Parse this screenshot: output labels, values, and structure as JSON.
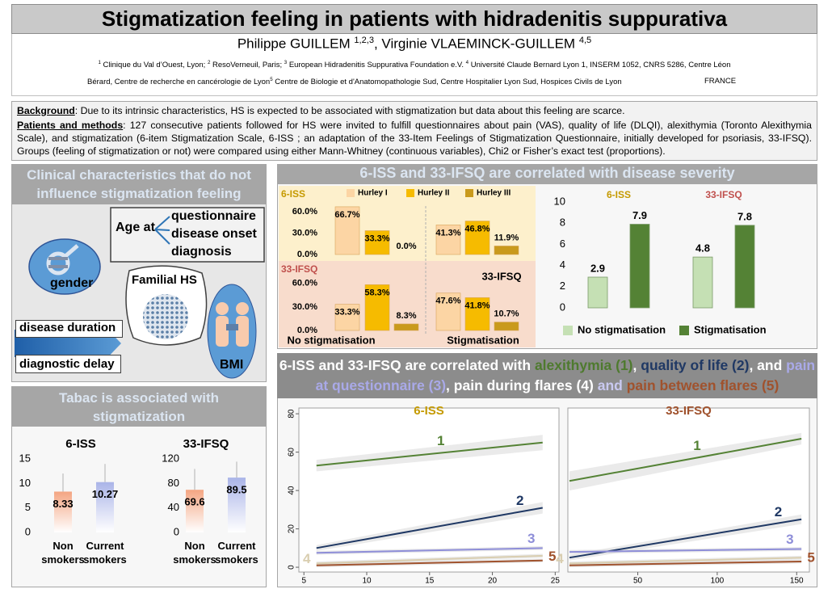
{
  "header": {
    "title": "Stigmatization feeling in patients with hidradenitis suppurativa",
    "authors": [
      {
        "text": "Philippe GUILLEM "
      },
      {
        "sup": "1,2,3"
      },
      {
        "text": ", Virginie VLAEMINCK-GUILLEM "
      },
      {
        "sup": "4,5"
      }
    ],
    "affiliations": [
      [
        {
          "sup": "1"
        },
        {
          "text": " Clinique du Val d’Ouest, Lyon; "
        },
        {
          "sup": "2"
        },
        {
          "text": " ResoVerneuil, Paris; "
        },
        {
          "sup": "3"
        },
        {
          "text": " European Hidradenitis Suppurativa Foundation e.V. "
        },
        {
          "sup": "4"
        },
        {
          "text": " Université Claude Bernard Lyon 1, INSERM 1052, CNRS 5286, Centre Léon"
        }
      ],
      [
        {
          "text": "Bérard, Centre de recherche en cancérologie de Lyon"
        },
        {
          "sup": "5"
        },
        {
          "text": " Centre de Biologie et d'Anatomopathologie Sud, Centre Hospitalier Lyon Sud, Hospices Civils de Lyon"
        }
      ]
    ],
    "country": "FRANCE"
  },
  "intro": [
    {
      "heading": "Background",
      "text": ": Due to its intrinsic characteristics, HS is expected to be associated with stigmatization but data about this feeling are scarce."
    },
    {
      "heading": "Patients and methods",
      "text": ": 127 consecutive patients followed for HS were invited to fulfill questionnaires about pain (VAS), quality of life (DLQI), alexithymia (Toronto Alexithymia Scale), and stigmatization (6-item Stigmatization Scale, 6-ISS ; an adaptation of the 33-Item Feelings of Stigmatization Questionnaire, initially developed for psoriasis, 33-IFSQ). Groups (feeling of stigmatization or not) were compared using either Mann-Whitney (continuous variables), Chi2 or Fisher’s exact test (proportions)."
    }
  ],
  "clinical": {
    "title": "Clinical characteristics that do not influence stigmatization feeling",
    "gender": "gender",
    "age_at": "Age at",
    "age_items": [
      "questionnaire",
      "disease onset",
      "diagnosis"
    ],
    "familial": "Familial HS",
    "duration": "disease duration",
    "delay": "diagnostic delay",
    "bmi": "BMI"
  },
  "panels": {
    "tabac": "Tabac is associated with stigmatization",
    "severity": "6-ISS and 33-IFSQ are correlated with disease severity",
    "correlates": [
      {
        "text": "6-ISS and 33-IFSQ are correlated with ",
        "color": "#ffffff"
      },
      {
        "text": "alexithymia (1)",
        "color": "#4e7a2e"
      },
      {
        "text": ", ",
        "color": "#ffffff"
      },
      {
        "text": "quality of life (2)",
        "color": "#1f3864"
      },
      {
        "text": ", and ",
        "color": "#ffffff"
      },
      {
        "text": "pain at questionnaire (3)",
        "color": "#a9a9e8"
      },
      {
        "text": ", ",
        "color": "#ffffff"
      },
      {
        "text": "pain during flares (4)",
        "color": "#ffffff"
      },
      {
        "text": " and ",
        "color": "#c9c9f0"
      },
      {
        "text": "pain between flares (5)",
        "color": "#a0522d"
      }
    ]
  },
  "chart_data": [
    {
      "type": "bar",
      "title": "6-ISS",
      "categories": [
        "Non smokers",
        "Current smokers"
      ],
      "values": [
        8.33,
        10.27
      ],
      "errors": [
        3.7,
        3.7
      ],
      "colors": [
        "#f4a582",
        "#aab4e8"
      ],
      "ylim": [
        0,
        15
      ],
      "yticks": [
        0,
        5,
        10,
        15
      ]
    },
    {
      "type": "bar",
      "title": "33-IFSQ",
      "categories": [
        "Non smokers",
        "Current smokers"
      ],
      "values": [
        69.6,
        89.5
      ],
      "errors": [
        34,
        26
      ],
      "colors": [
        "#f4a582",
        "#aab4e8"
      ],
      "ylim": [
        0,
        120
      ],
      "yticks": [
        0,
        40,
        80,
        120
      ]
    },
    {
      "type": "grouped_bar",
      "categories": [
        "No stigmatisation",
        "Stigmatisation"
      ],
      "series": [
        {
          "name": "Hurley I",
          "color": "#fcd5a4"
        },
        {
          "name": "Hurley II",
          "color": "#f6bb00"
        },
        {
          "name": "Hurley III",
          "color": "#c99a1c"
        }
      ],
      "rows": [
        {
          "name": "6-ISS",
          "color": "#c59a00",
          "values": [
            [
              66.7,
              33.3,
              0.0
            ],
            [
              41.3,
              46.8,
              11.9
            ]
          ],
          "value_labels": [
            [
              "66.7%",
              "33.3%",
              "0.0%"
            ],
            [
              "41.3%",
              "46.8%",
              "11.9%"
            ]
          ]
        },
        {
          "name": "33-IFSQ",
          "color": "#c0504d",
          "values": [
            [
              33.3,
              58.3,
              8.3
            ],
            [
              47.6,
              41.8,
              10.7
            ]
          ],
          "value_labels": [
            [
              "33.3%",
              "58.3%",
              "8.3%"
            ],
            [
              "47.6%",
              "41.8%",
              "10.7%"
            ]
          ]
        }
      ],
      "ylim": [
        0,
        70
      ],
      "yticks": [
        {
          "value": 0,
          "label": "0.0%"
        },
        {
          "value": 30,
          "label": "30.0%"
        },
        {
          "value": 60,
          "label": "60.0%"
        }
      ],
      "annotation": "33-IFSQ"
    },
    {
      "type": "bar",
      "categories": [
        "6-ISS",
        "33-IFSQ"
      ],
      "category_colors": [
        "#c59a00",
        "#c0504d"
      ],
      "series": [
        {
          "name": "No stigmatisation",
          "color": "#c5e0b4",
          "values": [
            2.9,
            4.8
          ]
        },
        {
          "name": "Stigmatisation",
          "color": "#548235",
          "values": [
            7.9,
            7.8
          ]
        }
      ],
      "ylim": [
        0,
        10
      ],
      "yticks": [
        0,
        2,
        4,
        6,
        8,
        10
      ]
    },
    {
      "type": "line",
      "title": "6-ISS",
      "title_color": "#c59a00",
      "xlim": [
        4.6,
        25.3
      ],
      "xticks": [
        5,
        10,
        15,
        20,
        25
      ],
      "ylim": [
        -2.5,
        83
      ],
      "yticks": [
        0,
        20,
        40,
        60,
        80
      ],
      "series": [
        {
          "name": "1",
          "color": "#548235",
          "x": [
            6,
            24
          ],
          "values": [
            53,
            65
          ],
          "ci": [
            3,
            4
          ]
        },
        {
          "name": "2",
          "color": "#1f3864",
          "x": [
            6,
            24
          ],
          "values": [
            10,
            31
          ],
          "ci": [
            1.5,
            3
          ]
        },
        {
          "name": "3",
          "color": "#8e8ed8",
          "x": [
            6,
            24
          ],
          "values": [
            7.5,
            10
          ],
          "ci": [
            1,
            1
          ]
        },
        {
          "name": "4",
          "color": "#d9ceb0",
          "x": [
            6,
            24
          ],
          "values": [
            2,
            6
          ],
          "ci": [
            1,
            1
          ]
        },
        {
          "name": "5",
          "color": "#a0522d",
          "x": [
            6,
            24
          ],
          "values": [
            1,
            3.5
          ],
          "ci": [
            1,
            1
          ]
        }
      ]
    },
    {
      "type": "line",
      "title": "33-IFSQ",
      "title_color": "#a0522d",
      "xlim": [
        6,
        158
      ],
      "xticks": [
        50,
        100,
        150
      ],
      "ylim": [
        -2.5,
        83
      ],
      "series": [
        {
          "name": "1",
          "color": "#548235",
          "x": [
            7,
            153
          ],
          "values": [
            45,
            67
          ],
          "ci": [
            5,
            3
          ]
        },
        {
          "name": "2",
          "color": "#1f3864",
          "x": [
            7,
            153
          ],
          "values": [
            5,
            25
          ],
          "ci": [
            1.5,
            2.5
          ]
        },
        {
          "name": "3",
          "color": "#8e8ed8",
          "x": [
            7,
            153
          ],
          "values": [
            8,
            9.5
          ],
          "ci": [
            1,
            1
          ]
        },
        {
          "name": "4",
          "color": "#d9ceb0",
          "x": [
            7,
            153
          ],
          "values": [
            2,
            5
          ],
          "ci": [
            1,
            1
          ]
        },
        {
          "name": "5",
          "color": "#a0522d",
          "x": [
            7,
            153
          ],
          "values": [
            1,
            3
          ],
          "ci": [
            1,
            1
          ]
        }
      ]
    }
  ]
}
